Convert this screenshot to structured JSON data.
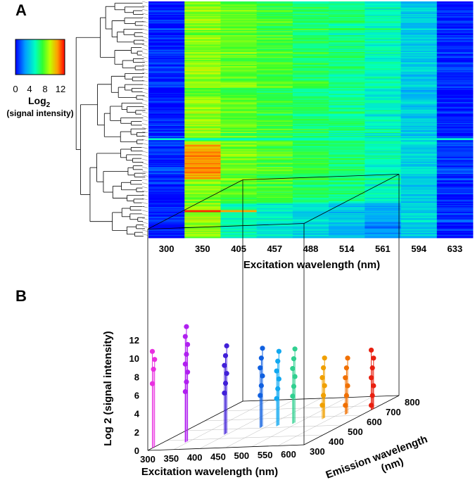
{
  "panel_a": {
    "label": "A",
    "legend": {
      "ticks": [
        "0",
        "4",
        "8",
        "12"
      ],
      "title": "Log",
      "title_sub": "2",
      "subtitle": "(signal intensity)"
    }
  },
  "panel_b": {
    "label": "B"
  },
  "chart_data": [
    {
      "type": "heatmap",
      "title": "",
      "xlabel": "Excitation wavelength (nm)",
      "categories": [
        "300",
        "350",
        "405",
        "457",
        "488",
        "514",
        "561",
        "594",
        "633"
      ],
      "color_scale": {
        "min": 0,
        "max": 13,
        "label": "Log2 (signal intensity)",
        "colormap": "rainbow (blue → red)"
      },
      "row_dendrogram": true,
      "n_rows_approx": 230,
      "column_mean_log2": [
        0.5,
        8.4,
        7.8,
        7.2,
        6.5,
        6.0,
        5.2,
        3.8,
        0.6
      ],
      "column_range_log2": [
        [
          0,
          6
        ],
        [
          5,
          13
        ],
        [
          4,
          11
        ],
        [
          3,
          9
        ],
        [
          3,
          8
        ],
        [
          2,
          8
        ],
        [
          1,
          7
        ],
        [
          0,
          6
        ],
        [
          0,
          7
        ]
      ],
      "highlight_row_cyan": 0.58,
      "highlight_row_red": 0.885
    },
    {
      "type": "scatter",
      "subtype": "3d-stem",
      "xlabel": "Excitation wavelength (nm)",
      "ylabel": "Emission wavelength (nm)",
      "zlabel": "Log 2 (signal intensity)",
      "xlim": [
        300,
        633
      ],
      "ylim": [
        300,
        800
      ],
      "zlim": [
        0,
        13
      ],
      "x_ticks": [
        "300",
        "350",
        "400",
        "450",
        "500",
        "550",
        "600"
      ],
      "y_ticks": [
        "300",
        "400",
        "500",
        "600",
        "700",
        "800"
      ],
      "z_ticks": [
        "0",
        "2",
        "4",
        "6",
        "8",
        "10",
        "12"
      ],
      "groups": [
        {
          "excitation": 300,
          "emission": 330,
          "color": "#e830e0",
          "z_values": [
            7,
            8.5,
            9.5,
            10.5
          ]
        },
        {
          "excitation": 350,
          "emission": 380,
          "color": "#b020f0",
          "z_values": [
            5.5,
            6.5,
            7.5,
            8.5,
            9.5,
            10.5,
            11.5,
            12.5
          ]
        },
        {
          "excitation": 405,
          "emission": 450,
          "color": "#4020d8",
          "z_values": [
            4.5,
            5.5,
            6.5,
            7.5,
            8.5,
            9.5
          ]
        },
        {
          "excitation": 457,
          "emission": 510,
          "color": "#1060e0",
          "z_values": [
            3.5,
            4.5,
            5.5,
            6.5,
            7.5,
            8.5
          ]
        },
        {
          "excitation": 488,
          "emission": 520,
          "color": "#10a8f0",
          "z_values": [
            3,
            4,
            5,
            6,
            7,
            8
          ]
        },
        {
          "excitation": 514,
          "emission": 540,
          "color": "#30d090",
          "z_values": [
            3,
            4,
            5,
            6,
            7,
            8
          ]
        },
        {
          "excitation": 561,
          "emission": 580,
          "color": "#f0a000",
          "z_values": [
            1.5,
            2.5,
            3.5,
            4.5,
            5.5,
            6.5
          ]
        },
        {
          "excitation": 594,
          "emission": 620,
          "color": "#f07000",
          "z_values": [
            1,
            2,
            3,
            4,
            5,
            6
          ]
        },
        {
          "excitation": 633,
          "emission": 660,
          "color": "#e82010",
          "z_values": [
            0.5,
            1.5,
            2.5,
            3.5,
            4.5,
            5.5,
            6.5
          ]
        }
      ]
    }
  ]
}
